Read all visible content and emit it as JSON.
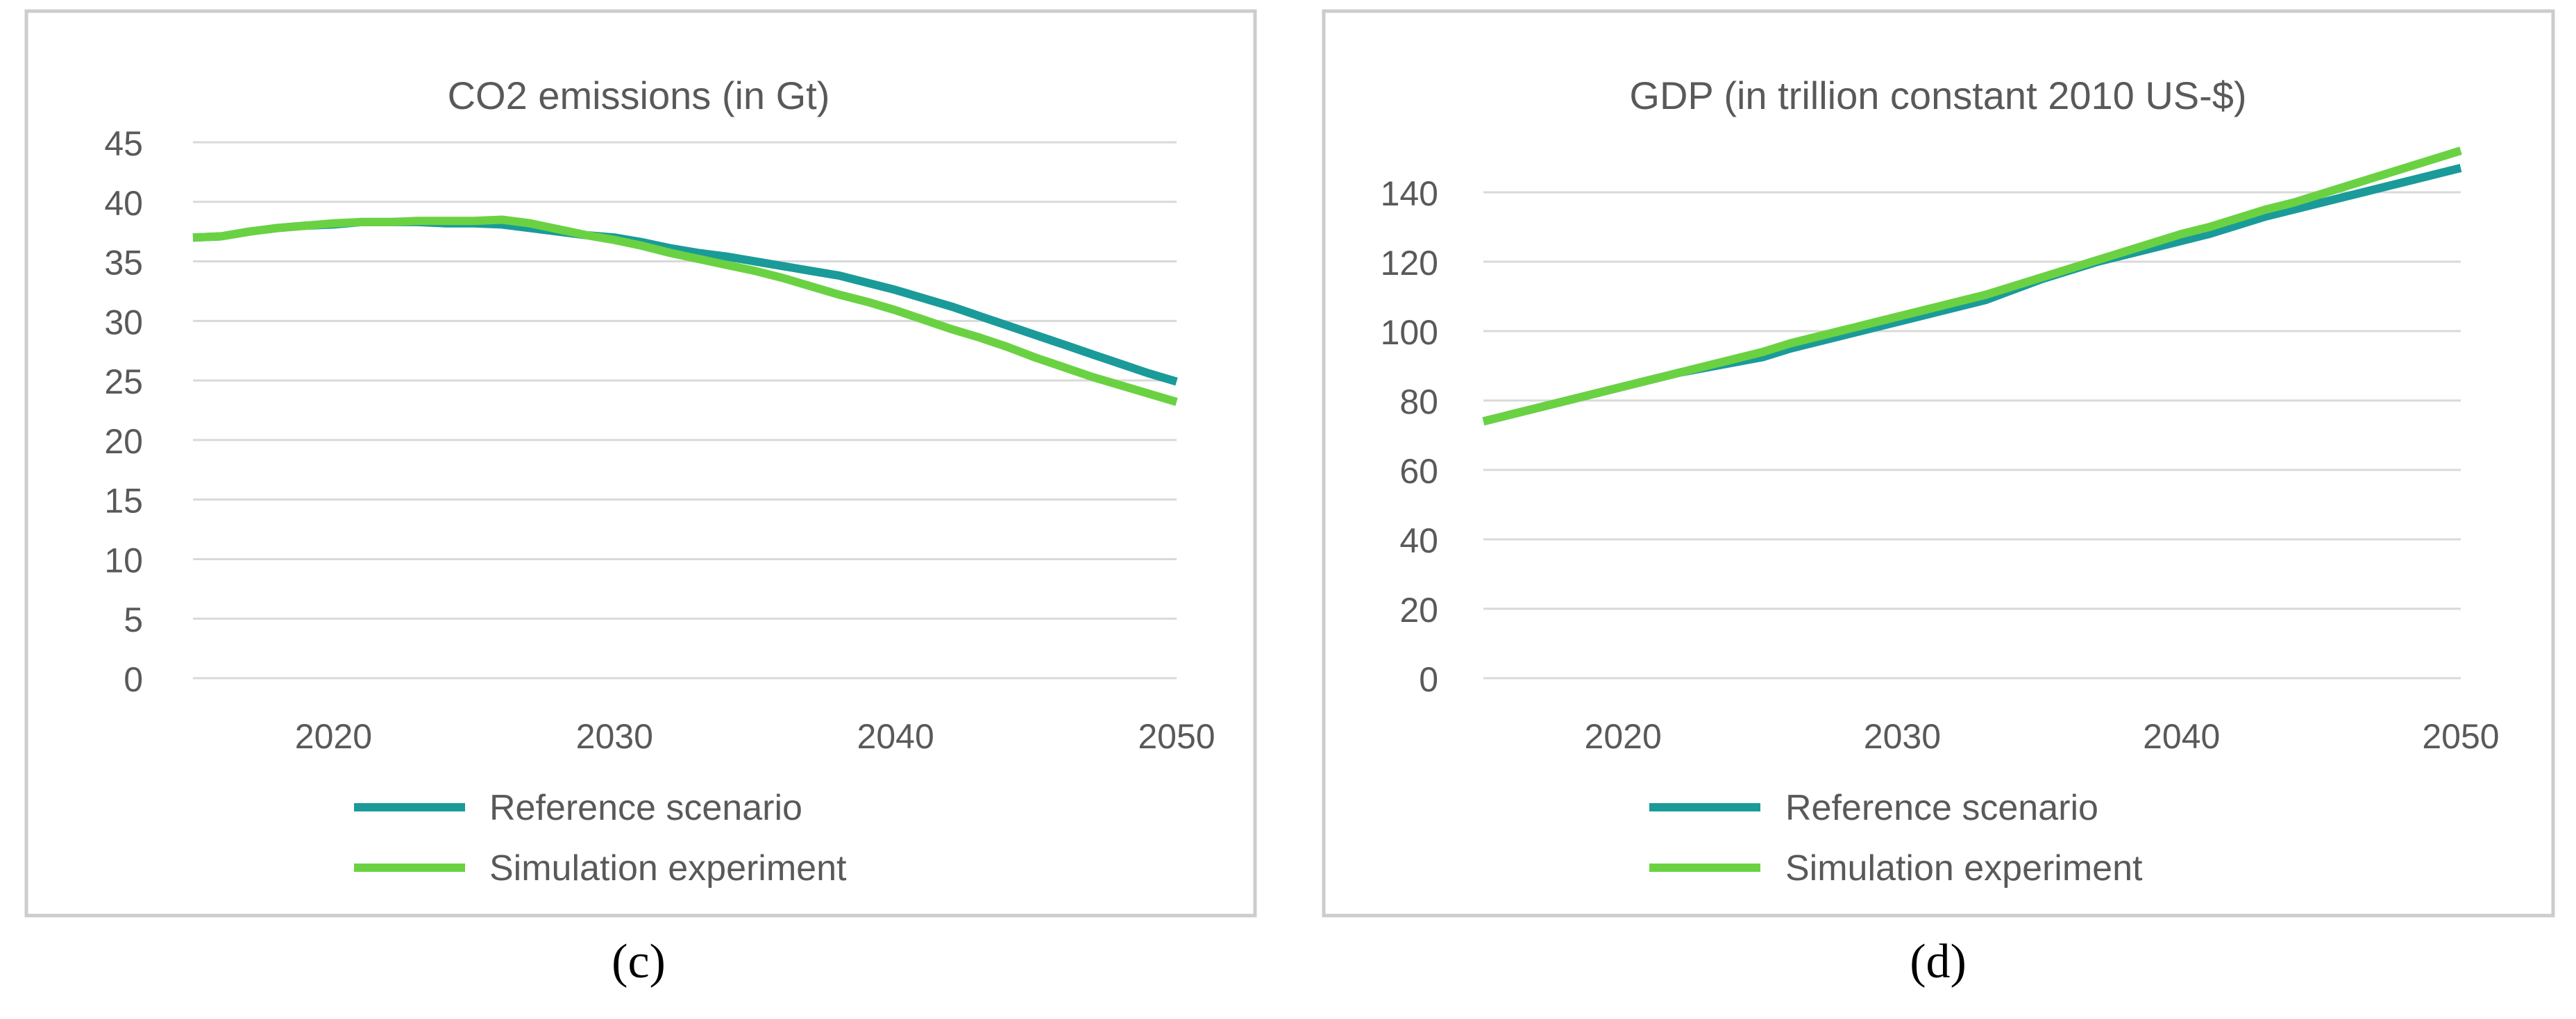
{
  "colors": {
    "reference": "#1a9b99",
    "simulation": "#6ad242",
    "grid": "#d9d9d9",
    "frame": "#cccccc",
    "text": "#595959"
  },
  "chart_data": [
    {
      "type": "line",
      "panel_label": "(c)",
      "title": "CO2 emissions (in Gt)",
      "xlabel": "",
      "ylabel": "",
      "xlim": [
        2015,
        2050
      ],
      "ylim": [
        0,
        45
      ],
      "y_ticks": [
        "0",
        "5",
        "10",
        "15",
        "20",
        "25",
        "30",
        "35",
        "40",
        "45"
      ],
      "x_ticks": [
        "2020",
        "2030",
        "2040",
        "2050"
      ],
      "legend": [
        "Reference scenario",
        "Simulation experiment"
      ],
      "legend_position": "bottom",
      "grid": true,
      "series": [
        {
          "name": "Reference scenario",
          "x": [
            2015,
            2016,
            2017,
            2018,
            2019,
            2020,
            2021,
            2022,
            2023,
            2024,
            2025,
            2026,
            2027,
            2028,
            2029,
            2030,
            2031,
            2032,
            2033,
            2034,
            2035,
            2036,
            2037,
            2038,
            2039,
            2040,
            2041,
            2042,
            2043,
            2044,
            2045,
            2046,
            2047,
            2048,
            2049,
            2050
          ],
          "values": [
            37.0,
            37.1,
            37.5,
            37.8,
            38.0,
            38.1,
            38.3,
            38.3,
            38.3,
            38.2,
            38.2,
            38.1,
            37.8,
            37.5,
            37.2,
            37.0,
            36.6,
            36.1,
            35.7,
            35.4,
            35.0,
            34.6,
            34.2,
            33.8,
            33.2,
            32.6,
            31.9,
            31.2,
            30.4,
            29.6,
            28.8,
            28.0,
            27.2,
            26.4,
            25.6,
            24.9
          ]
        },
        {
          "name": "Simulation experiment",
          "x": [
            2015,
            2016,
            2017,
            2018,
            2019,
            2020,
            2021,
            2022,
            2023,
            2024,
            2025,
            2026,
            2027,
            2028,
            2029,
            2030,
            2031,
            2032,
            2033,
            2034,
            2035,
            2036,
            2037,
            2038,
            2039,
            2040,
            2041,
            2042,
            2043,
            2044,
            2045,
            2046,
            2047,
            2048,
            2049,
            2050
          ],
          "values": [
            37.0,
            37.1,
            37.5,
            37.8,
            38.0,
            38.2,
            38.3,
            38.3,
            38.4,
            38.4,
            38.4,
            38.5,
            38.2,
            37.7,
            37.2,
            36.8,
            36.3,
            35.7,
            35.2,
            34.7,
            34.2,
            33.6,
            32.9,
            32.2,
            31.6,
            30.9,
            30.1,
            29.3,
            28.6,
            27.8,
            26.9,
            26.1,
            25.3,
            24.6,
            23.9,
            23.2
          ]
        }
      ]
    },
    {
      "type": "line",
      "panel_label": "(d)",
      "title": "GDP (in trillion constant 2010 US-$)",
      "xlabel": "",
      "ylabel": "",
      "xlim": [
        2015,
        2050
      ],
      "ylim": [
        0,
        140
      ],
      "y_ticks": [
        "0",
        "20",
        "40",
        "60",
        "80",
        "100",
        "120",
        "140"
      ],
      "x_ticks": [
        "2020",
        "2030",
        "2040",
        "2050"
      ],
      "legend": [
        "Reference scenario",
        "Simulation experiment"
      ],
      "legend_position": "bottom",
      "grid": true,
      "series": [
        {
          "name": "Reference scenario",
          "x": [
            2015,
            2016,
            2017,
            2018,
            2019,
            2020,
            2021,
            2022,
            2023,
            2024,
            2025,
            2026,
            2027,
            2028,
            2029,
            2030,
            2031,
            2032,
            2033,
            2034,
            2035,
            2036,
            2037,
            2038,
            2039,
            2040,
            2041,
            2042,
            2043,
            2044,
            2045,
            2046,
            2047,
            2048,
            2049,
            2050
          ],
          "values": [
            74,
            76,
            78,
            80,
            82,
            84,
            86,
            88,
            89.5,
            91,
            92.5,
            95,
            97,
            99,
            101,
            103,
            105,
            107,
            109,
            112,
            115,
            117.5,
            120,
            122,
            124,
            126,
            128,
            130.5,
            133,
            135,
            137,
            139,
            141,
            143,
            145,
            147
          ]
        },
        {
          "name": "Simulation experiment",
          "x": [
            2015,
            2016,
            2017,
            2018,
            2019,
            2020,
            2021,
            2022,
            2023,
            2024,
            2025,
            2026,
            2027,
            2028,
            2029,
            2030,
            2031,
            2032,
            2033,
            2034,
            2035,
            2036,
            2037,
            2038,
            2039,
            2040,
            2041,
            2042,
            2043,
            2044,
            2045,
            2046,
            2047,
            2048,
            2049,
            2050
          ],
          "values": [
            74,
            76,
            78,
            80,
            82,
            84,
            86,
            88,
            90,
            92,
            94,
            96.5,
            98.5,
            100.5,
            102.5,
            104.5,
            106.5,
            108.5,
            110.5,
            113,
            115.5,
            118,
            120.5,
            123,
            125.5,
            128,
            130,
            132.5,
            135,
            137,
            139.5,
            142,
            144.5,
            147,
            149.5,
            152
          ]
        }
      ]
    }
  ]
}
